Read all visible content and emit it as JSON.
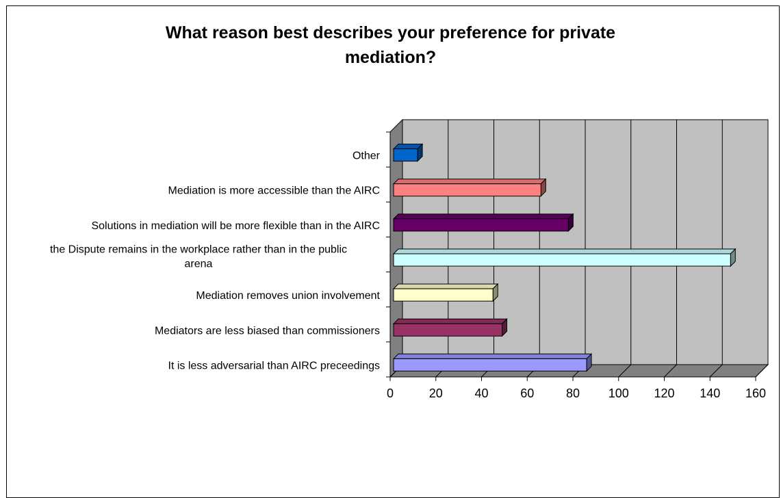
{
  "chart_data": {
    "type": "bar",
    "orientation": "horizontal",
    "style": "3d",
    "title_lines": [
      "What reason best describes your preference for private",
      "mediation?"
    ],
    "title": "What reason best describes your preference for private mediation?",
    "categories": [
      "It is less adversarial than AIRC preceedings",
      "Mediators are less biased than commissioners",
      "Mediation removes union involvement",
      "the Dispute remains in the workplace rather than in the public arena",
      "Solutions in mediation will be more flexible than in the AIRC",
      "Mediation is more accessible than the AIRC",
      "Other"
    ],
    "category_lines": [
      [
        "It is less adversarial than AIRC preceedings"
      ],
      [
        "Mediators are less biased than commissioners"
      ],
      [
        "Mediation removes union involvement"
      ],
      [
        "the Dispute remains in the workplace rather than in the public",
        "arena"
      ],
      [
        "Solutions in mediation will be more flexible than in the AIRC"
      ],
      [
        "Mediation is more accessible than the AIRC"
      ],
      [
        "Other"
      ]
    ],
    "values": [
      86,
      49,
      45,
      149,
      78,
      66,
      12
    ],
    "colors": [
      "#9999FF",
      "#993366",
      "#FFFFCC",
      "#CCFFFF",
      "#660066",
      "#FF8080",
      "#0066CC"
    ],
    "xlim": [
      0,
      160
    ],
    "xticks": [
      "0",
      "20",
      "40",
      "60",
      "80",
      "100",
      "120",
      "140",
      "160"
    ],
    "grid": true,
    "plot_background": "#C0C0C0",
    "legend": "none"
  }
}
